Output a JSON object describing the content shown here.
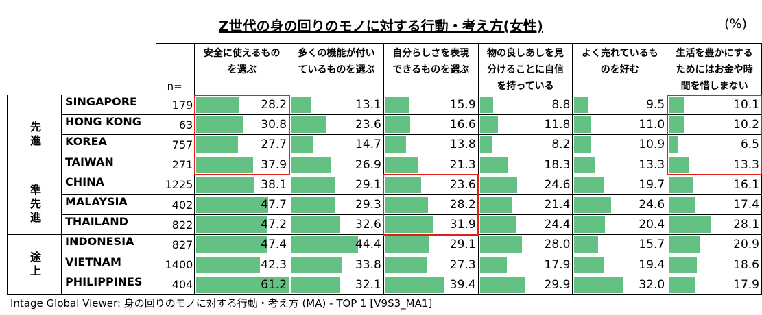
{
  "title": "Z世代の身の回りのモノに対する行動・考え方(女性)",
  "unit": "(%)",
  "n_label": "n=",
  "footer": "Intage Global Viewer: 身の回りのモノに対する行動・考え方 (MA) - TOP 1 [V9S3_MA1]",
  "chart_data": {
    "type": "table",
    "title": "Z世代の身の回りのモノに対する行動・考え方(女性)",
    "columns": [
      "安全に使えるものを選ぶ",
      "多くの機能が付いているものを選ぶ",
      "自分らしさを表現できるものを選ぶ",
      "物の良しあしを見分けることに自信を持っている",
      "よく売れているものを好む",
      "生活を豊かにするためにはお金や時間を惜しまない"
    ],
    "groups": [
      {
        "label": "先進",
        "rows": 4
      },
      {
        "label": "準先進",
        "rows": 3
      },
      {
        "label": "途上",
        "rows": 3
      }
    ],
    "rows": [
      {
        "country": "SINGAPORE",
        "n": 179,
        "values": [
          28.2,
          13.1,
          15.9,
          8.8,
          9.5,
          10.1
        ]
      },
      {
        "country": "HONG KONG",
        "n": 63,
        "values": [
          30.8,
          23.6,
          16.6,
          11.8,
          11.0,
          10.2
        ]
      },
      {
        "country": "KOREA",
        "n": 757,
        "values": [
          27.7,
          14.7,
          13.8,
          8.2,
          10.9,
          6.5
        ]
      },
      {
        "country": "TAIWAN",
        "n": 271,
        "values": [
          37.9,
          26.9,
          21.3,
          18.3,
          13.3,
          13.3
        ]
      },
      {
        "country": "CHINA",
        "n": 1225,
        "values": [
          38.1,
          29.1,
          23.6,
          24.6,
          19.7,
          16.1
        ]
      },
      {
        "country": "MALAYSIA",
        "n": 402,
        "values": [
          47.7,
          29.3,
          28.2,
          21.4,
          24.6,
          17.4
        ]
      },
      {
        "country": "THAILAND",
        "n": 822,
        "values": [
          47.2,
          32.6,
          31.9,
          24.4,
          20.4,
          28.1
        ]
      },
      {
        "country": "INDONESIA",
        "n": 827,
        "values": [
          47.4,
          44.4,
          29.1,
          28.0,
          15.7,
          20.9
        ]
      },
      {
        "country": "VIETNAM",
        "n": 1400,
        "values": [
          42.3,
          33.8,
          27.3,
          17.9,
          19.4,
          18.6
        ]
      },
      {
        "country": "PHILIPPINES",
        "n": 404,
        "values": [
          61.2,
          32.1,
          39.4,
          29.9,
          32.0,
          17.9
        ]
      }
    ],
    "highlights": [
      {
        "column": 0,
        "rows": [
          0,
          3
        ]
      },
      {
        "column": 2,
        "rows": [
          4,
          6
        ]
      },
      {
        "column": 5,
        "rows": [
          0,
          3
        ]
      }
    ],
    "bar_color": "#63c184",
    "highlight_color": "#e01e1e"
  }
}
